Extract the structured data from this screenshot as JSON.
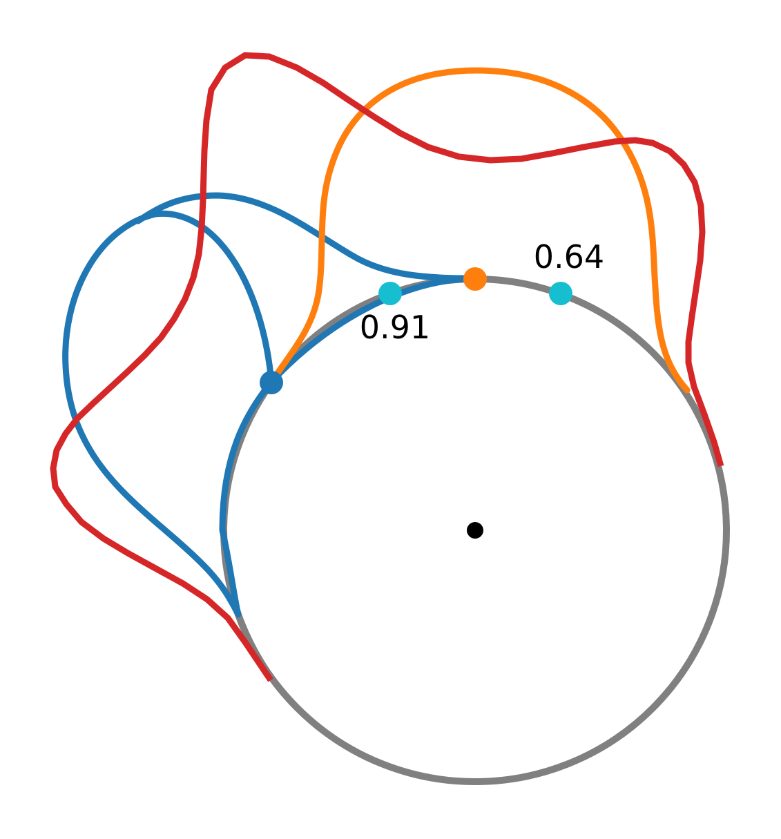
{
  "labels": {
    "value_a": "0.64",
    "value_b": "0.91"
  },
  "colors": {
    "circle": "#808080",
    "blue": "#1f77b4",
    "orange": "#ff7f0e",
    "red": "#d62728",
    "cyan": "#17becf",
    "center": "#000000",
    "label_text": "#000000"
  }
}
